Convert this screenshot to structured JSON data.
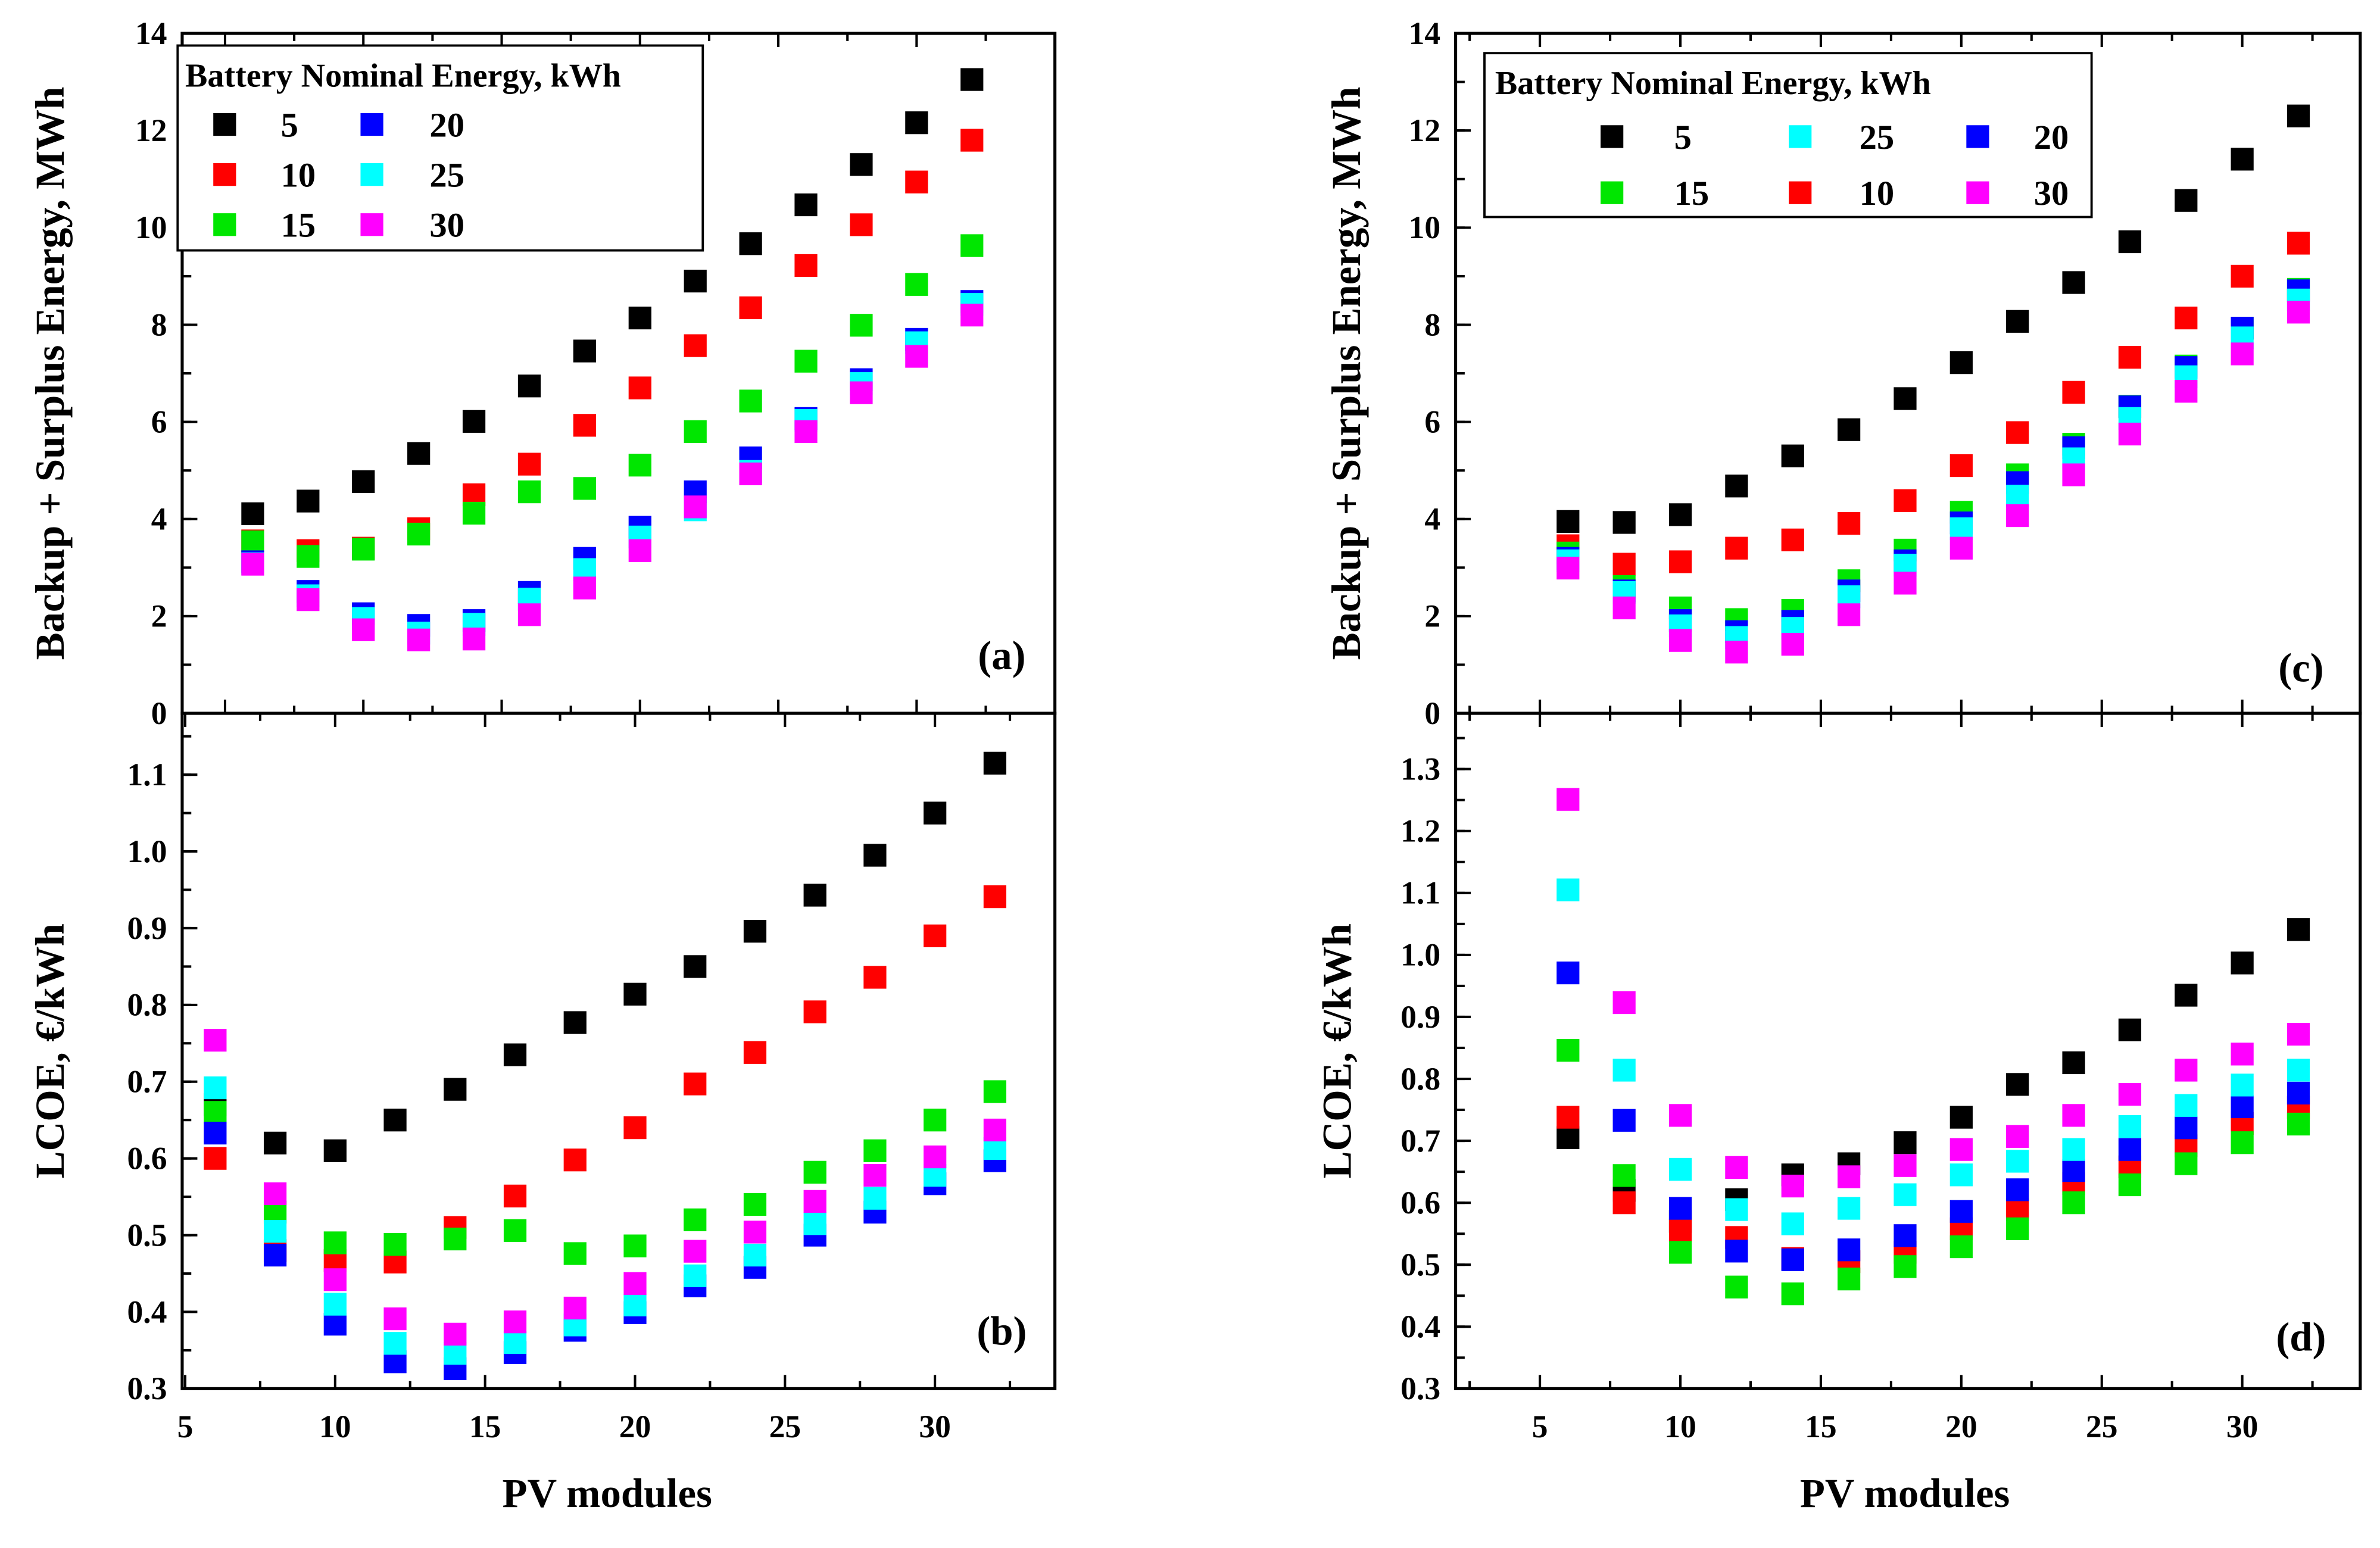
{
  "chart_data": [
    {
      "panel": "(a)",
      "type": "scatter",
      "xlabel": "",
      "ylabel": "Backup + Surplus Energy, MWh",
      "xlim": [
        3.45,
        35
      ],
      "ylim": [
        0,
        14
      ],
      "xticks": [
        5,
        10,
        15,
        20,
        25,
        30
      ],
      "xtick_labels_shown": false,
      "yticks": [
        0,
        2,
        4,
        6,
        8,
        10,
        12,
        14
      ],
      "grid": false,
      "legend": {
        "title": "Battery Nominal Energy, kWh",
        "placement": "top-left",
        "columns": 2,
        "order": [
          0,
          1,
          2,
          3,
          4,
          5
        ]
      },
      "x": [
        6,
        8,
        10,
        12,
        14,
        16,
        18,
        20,
        22,
        24,
        26,
        28,
        30,
        32
      ],
      "series": [
        {
          "name": "5",
          "color": "#000000",
          "values": [
            4.11,
            4.37,
            4.77,
            5.35,
            6.01,
            6.74,
            7.46,
            8.14,
            8.9,
            9.67,
            10.47,
            11.3,
            12.16,
            13.05
          ]
        },
        {
          "name": "10",
          "color": "#ff0000",
          "values": [
            3.55,
            3.35,
            3.4,
            3.8,
            4.5,
            5.13,
            5.93,
            6.7,
            7.57,
            8.35,
            9.22,
            10.06,
            10.94,
            11.8
          ]
        },
        {
          "name": "15",
          "color": "#00e600",
          "values": [
            3.53,
            3.23,
            3.38,
            3.69,
            4.12,
            4.56,
            4.63,
            5.11,
            5.8,
            6.43,
            7.25,
            7.99,
            8.83,
            9.63
          ]
        },
        {
          "name": "20",
          "color": "#0000ff",
          "values": [
            3.12,
            2.51,
            2.05,
            1.81,
            1.91,
            2.49,
            3.19,
            3.83,
            4.56,
            5.26,
            6.07,
            6.87,
            7.7,
            8.48
          ]
        },
        {
          "name": "25",
          "color": "#00ffff",
          "values": [
            3.08,
            2.42,
            1.95,
            1.65,
            1.83,
            2.35,
            2.96,
            3.63,
            4.19,
            4.98,
            6.03,
            6.79,
            7.63,
            8.42
          ]
        },
        {
          "name": "30",
          "color": "#ff00ff",
          "values": [
            3.07,
            2.34,
            1.72,
            1.51,
            1.53,
            2.03,
            2.58,
            3.35,
            4.25,
            4.93,
            5.8,
            6.6,
            7.35,
            8.2
          ]
        }
      ]
    },
    {
      "panel": "(b)",
      "type": "scatter",
      "xlabel": "PV modules",
      "ylabel": "LCOE, €/kWh",
      "xlim": [
        4.9,
        34
      ],
      "ylim": [
        0.3,
        1.18
      ],
      "xticks": [
        5,
        10,
        15,
        20,
        25,
        30
      ],
      "xtick_labels_shown": true,
      "yticks": [
        "0.3",
        "0.4",
        "0.5",
        "0.6",
        "0.7",
        "0.8",
        "0.9",
        "1.0",
        "1.1"
      ],
      "grid": false,
      "x": [
        6,
        8,
        10,
        12,
        14,
        16,
        18,
        20,
        22,
        24,
        26,
        28,
        30,
        32
      ],
      "series": [
        {
          "name": "5",
          "color": "#000000",
          "values": [
            0.67,
            0.62,
            0.61,
            0.65,
            0.69,
            0.735,
            0.777,
            0.814,
            0.85,
            0.896,
            0.943,
            0.995,
            1.05,
            1.115
          ]
        },
        {
          "name": "10",
          "color": "#ff0000",
          "values": [
            0.6,
            0.48,
            0.467,
            0.465,
            0.51,
            0.551,
            0.598,
            0.64,
            0.697,
            0.738,
            0.791,
            0.836,
            0.89,
            0.941
          ]
        },
        {
          "name": "15",
          "color": "#00e600",
          "values": [
            0.66,
            0.53,
            0.49,
            0.488,
            0.495,
            0.506,
            0.476,
            0.486,
            0.52,
            0.54,
            0.582,
            0.61,
            0.65,
            0.687
          ]
        },
        {
          "name": "20",
          "color": "#0000ff",
          "values": [
            0.633,
            0.474,
            0.384,
            0.335,
            0.326,
            0.347,
            0.376,
            0.399,
            0.434,
            0.458,
            0.5,
            0.53,
            0.567,
            0.597
          ]
        },
        {
          "name": "25",
          "color": "#00ffff",
          "values": [
            0.692,
            0.505,
            0.41,
            0.359,
            0.346,
            0.36,
            0.383,
            0.409,
            0.447,
            0.474,
            0.515,
            0.548,
            0.578,
            0.613
          ]
        },
        {
          "name": "30",
          "color": "#ff00ff",
          "values": [
            0.754,
            0.554,
            0.442,
            0.391,
            0.371,
            0.387,
            0.405,
            0.437,
            0.479,
            0.504,
            0.544,
            0.578,
            0.602,
            0.637
          ]
        }
      ]
    },
    {
      "panel": "(c)",
      "type": "scatter",
      "xlabel": "",
      "ylabel": "Backup + Surplus Energy, MWh",
      "xlim": [
        2,
        34.2
      ],
      "ylim": [
        0,
        14
      ],
      "xticks": [
        5,
        10,
        15,
        20,
        25,
        30
      ],
      "xtick_labels_shown": false,
      "yticks": [
        0,
        2,
        4,
        6,
        8,
        10,
        12,
        14
      ],
      "grid": false,
      "legend": {
        "title": "Battery Nominal Energy, kWh",
        "placement": "top-left",
        "columns": 3,
        "order": [
          0,
          2,
          4,
          1,
          3,
          5
        ]
      },
      "x": [
        6,
        8,
        10,
        12,
        14,
        16,
        18,
        20,
        22,
        24,
        26,
        28,
        30,
        32
      ],
      "series": [
        {
          "name": "5",
          "color": "#000000",
          "values": [
            3.95,
            3.93,
            4.09,
            4.68,
            5.3,
            5.84,
            6.48,
            7.22,
            8.07,
            8.87,
            9.71,
            10.56,
            11.41,
            12.3
          ]
        },
        {
          "name": "10",
          "color": "#ff0000",
          "values": [
            3.45,
            3.07,
            3.12,
            3.4,
            3.57,
            3.91,
            4.38,
            5.1,
            5.78,
            6.61,
            7.33,
            8.14,
            9.0,
            9.68
          ]
        },
        {
          "name": "15",
          "color": "#00e600",
          "values": [
            3.3,
            2.61,
            2.17,
            1.93,
            2.12,
            2.73,
            3.36,
            4.14,
            4.91,
            5.54,
            6.32,
            7.15,
            7.93,
            8.73
          ]
        },
        {
          "name": "20",
          "color": "#0000ff",
          "values": [
            3.19,
            2.52,
            1.91,
            1.68,
            1.89,
            2.52,
            3.14,
            3.92,
            4.75,
            5.47,
            6.31,
            7.12,
            7.93,
            8.7
          ]
        },
        {
          "name": "25",
          "color": "#00ffff",
          "values": [
            3.14,
            2.49,
            1.8,
            1.56,
            1.75,
            2.4,
            3.05,
            3.8,
            4.47,
            5.24,
            6.07,
            6.93,
            7.73,
            8.51
          ]
        },
        {
          "name": "30",
          "color": "#ff00ff",
          "values": [
            2.99,
            2.17,
            1.5,
            1.26,
            1.42,
            2.03,
            2.68,
            3.4,
            4.07,
            4.91,
            5.75,
            6.63,
            7.4,
            8.26
          ]
        }
      ]
    },
    {
      "panel": "(d)",
      "type": "scatter",
      "xlabel": "PV modules",
      "ylabel": "LCOE, €/kWh",
      "xlim": [
        2,
        34.2
      ],
      "ylim": [
        0.3,
        1.39
      ],
      "xticks": [
        5,
        10,
        15,
        20,
        25,
        30
      ],
      "xtick_labels_shown": true,
      "yticks": [
        "0.3",
        "0.4",
        "0.5",
        "0.6",
        "0.7",
        "0.8",
        "0.9",
        "1.0",
        "1.1",
        "1.2",
        "1.3"
      ],
      "grid": false,
      "x": [
        6,
        8,
        10,
        12,
        14,
        16,
        18,
        20,
        22,
        24,
        26,
        28,
        30,
        32
      ],
      "series": [
        {
          "name": "5",
          "color": "#000000",
          "values": [
            0.705,
            0.62,
            0.57,
            0.605,
            0.645,
            0.663,
            0.697,
            0.738,
            0.791,
            0.826,
            0.879,
            0.935,
            0.987,
            1.041
          ]
        },
        {
          "name": "10",
          "color": "#ff0000",
          "values": [
            0.738,
            0.6,
            0.556,
            0.544,
            0.51,
            0.505,
            0.52,
            0.558,
            0.589,
            0.631,
            0.658,
            0.692,
            0.728,
            0.754
          ]
        },
        {
          "name": "15",
          "color": "#00e600",
          "values": [
            0.846,
            0.644,
            0.52,
            0.464,
            0.453,
            0.477,
            0.497,
            0.529,
            0.558,
            0.6,
            0.629,
            0.663,
            0.697,
            0.727
          ]
        },
        {
          "name": "20",
          "color": "#0000ff",
          "values": [
            0.971,
            0.733,
            0.591,
            0.522,
            0.508,
            0.524,
            0.547,
            0.586,
            0.621,
            0.652,
            0.686,
            0.721,
            0.755,
            0.777
          ]
        },
        {
          "name": "25",
          "color": "#00ffff",
          "values": [
            1.105,
            0.814,
            0.654,
            0.589,
            0.566,
            0.591,
            0.613,
            0.645,
            0.667,
            0.686,
            0.723,
            0.757,
            0.79,
            0.814
          ]
        },
        {
          "name": "30",
          "color": "#ff00ff",
          "values": [
            1.251,
            0.923,
            0.741,
            0.657,
            0.627,
            0.642,
            0.66,
            0.686,
            0.707,
            0.741,
            0.775,
            0.814,
            0.84,
            0.872
          ]
        }
      ]
    }
  ]
}
